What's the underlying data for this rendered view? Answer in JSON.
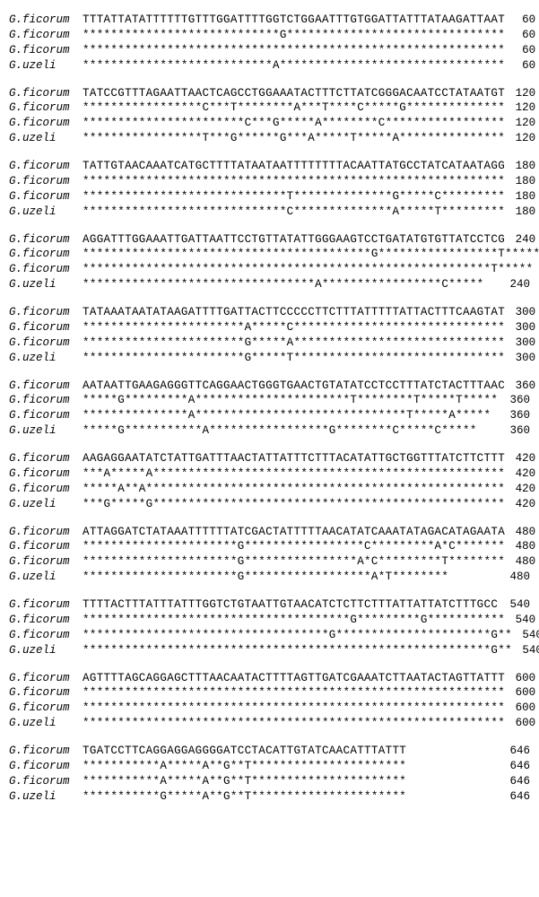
{
  "alignment": {
    "font_family": "Courier New",
    "label_font_style": "italic",
    "font_size_pt": 10,
    "text_color": "#000000",
    "background_color": "#ffffff",
    "star_char": "*",
    "blocks": [
      {
        "end": 60,
        "rows": [
          {
            "label": "G.ficorum",
            "seq": "TTTATTATATTTTTTGTTTGGATTTTGGTCTGGAATTTGTGGATTATTTATAAGATTAAT",
            "pos": 60
          },
          {
            "label": "G.ficorum",
            "seq": "****************************G*******************************",
            "pos": 60
          },
          {
            "label": "G.ficorum",
            "seq": "************************************************************",
            "pos": 60
          },
          {
            "label": "G.uzeli",
            "seq": "***************************A********************************",
            "pos": 60
          }
        ]
      },
      {
        "end": 120,
        "rows": [
          {
            "label": "G.ficorum",
            "seq": "TATCCGTTTAGAATTAACTCAGCCTGGAAATACTTTCTTATCGGGACAATCCTATAATGT",
            "pos": 120
          },
          {
            "label": "G.ficorum",
            "seq": "*****************C***T********A***T****C*****G**************",
            "pos": 120
          },
          {
            "label": "G.ficorum",
            "seq": "***********************C***G*****A********C*****************",
            "pos": 120
          },
          {
            "label": "G.uzeli",
            "seq": "*****************T***G******G***A*****T*****A***************",
            "pos": 120
          }
        ]
      },
      {
        "end": 180,
        "rows": [
          {
            "label": "G.ficorum",
            "seq": "TATTGTAACAAATCATGCTTTTATAATAATTTTTTTTACAATTATGCCTATCATAATAGG",
            "pos": 180
          },
          {
            "label": "G.ficorum",
            "seq": "************************************************************",
            "pos": 180
          },
          {
            "label": "G.ficorum",
            "seq": "*****************************T**************G*****C*********",
            "pos": 180
          },
          {
            "label": "G.uzeli",
            "seq": "*****************************C**************A*****T*********",
            "pos": 180
          }
        ]
      },
      {
        "end": 240,
        "rows": [
          {
            "label": "G.ficorum",
            "seq": "AGGATTTGGAAATTGATTAATTCCTGTTATATTGGGAAGTCCTGATATGTGTTATCCTCG",
            "pos": 240
          },
          {
            "label": "G.ficorum",
            "seq": "*****************************************G*****************T*****",
            "pos": 240
          },
          {
            "label": "G.ficorum",
            "seq": "**********************************************************T*****",
            "pos": 240
          },
          {
            "label": "G.uzeli",
            "seq": "*********************************A*****************C*****",
            "pos": 240
          }
        ]
      },
      {
        "end": 300,
        "rows": [
          {
            "label": "G.ficorum",
            "seq": "TATAAATAATATAAGATTTTGATTACTTCCCCCTTCTTTATTTTTATTACTTTCAAGTAT",
            "pos": 300
          },
          {
            "label": "G.ficorum",
            "seq": "***********************A*****C******************************",
            "pos": 300
          },
          {
            "label": "G.ficorum",
            "seq": "***********************G*****A******************************",
            "pos": 300
          },
          {
            "label": "G.uzeli",
            "seq": "***********************G*****T******************************",
            "pos": 300
          }
        ]
      },
      {
        "end": 360,
        "rows": [
          {
            "label": "G.ficorum",
            "seq": "AATAATTGAAGAGGGTTCAGGAACTGGGTGAACTGTATATCCTCCTTTATCTACTTTAAC",
            "pos": 360
          },
          {
            "label": "G.ficorum",
            "seq": "*****G*********A**********************T********T*****T*****",
            "pos": 360
          },
          {
            "label": "G.ficorum",
            "seq": "***************A******************************T*****A*****",
            "pos": 360
          },
          {
            "label": "G.uzeli",
            "seq": "*****G***********A*****************G********C*****C*****",
            "pos": 360
          }
        ]
      },
      {
        "end": 420,
        "rows": [
          {
            "label": "G.ficorum",
            "seq": "AAGAGGAATATCTATTGATTTAACTATTATTTCTTTACATATTGCTGGTTTATCTTCTTT",
            "pos": 420
          },
          {
            "label": "G.ficorum",
            "seq": "***A*****A**************************************************",
            "pos": 420
          },
          {
            "label": "G.ficorum",
            "seq": "*****A**A***************************************************",
            "pos": 420
          },
          {
            "label": "G.uzeli",
            "seq": "***G*****G**************************************************",
            "pos": 420
          }
        ]
      },
      {
        "end": 480,
        "rows": [
          {
            "label": "G.ficorum",
            "seq": "ATTAGGATCTATAAATTTTTTATCGACTATTTTTAACATATCAAATATAGACATAGAATA",
            "pos": 480
          },
          {
            "label": "G.ficorum",
            "seq": "**********************G*****************C*********A*C*******",
            "pos": 480
          },
          {
            "label": "G.ficorum",
            "seq": "**********************G****************A*C*********T********",
            "pos": 480
          },
          {
            "label": "G.uzeli",
            "seq": "**********************G******************A*T********",
            "pos": 480
          }
        ]
      },
      {
        "end": 540,
        "rows": [
          {
            "label": "G.ficorum",
            "seq": "TTTTACTTTATTTATTTGGTCTGTAATTGTAACATCTCTTCTTTATTATTATCTTTGCC",
            "pos": 540
          },
          {
            "label": "G.ficorum",
            "seq": "**************************************G*********G***********",
            "pos": 540
          },
          {
            "label": "G.ficorum",
            "seq": "***********************************G**********************G**",
            "pos": 540
          },
          {
            "label": "G.uzeli",
            "seq": "**********************************************************G**",
            "pos": 540
          }
        ]
      },
      {
        "end": 600,
        "rows": [
          {
            "label": "G.ficorum",
            "seq": "AGTTTTAGCAGGAGCTTTAACAATACTTTTAGTTGATCGAAATCTTAATACTAGTTATTT",
            "pos": 600
          },
          {
            "label": "G.ficorum",
            "seq": "************************************************************",
            "pos": 600
          },
          {
            "label": "G.ficorum",
            "seq": "************************************************************",
            "pos": 600
          },
          {
            "label": "G.uzeli",
            "seq": "************************************************************",
            "pos": 600
          }
        ]
      },
      {
        "end": 646,
        "rows": [
          {
            "label": "G.ficorum",
            "seq": "TGATCCTTCAGGAGGAGGGGATCCTACATTGTATCAACATTTATTT",
            "pos": 646
          },
          {
            "label": "G.ficorum",
            "seq": "***********A*****A**G**T**********************",
            "pos": 646
          },
          {
            "label": "G.ficorum",
            "seq": "***********A*****A**G**T**********************",
            "pos": 646
          },
          {
            "label": "G.uzeli",
            "seq": "***********G*****A**G**T**********************",
            "pos": 646
          }
        ]
      }
    ]
  }
}
